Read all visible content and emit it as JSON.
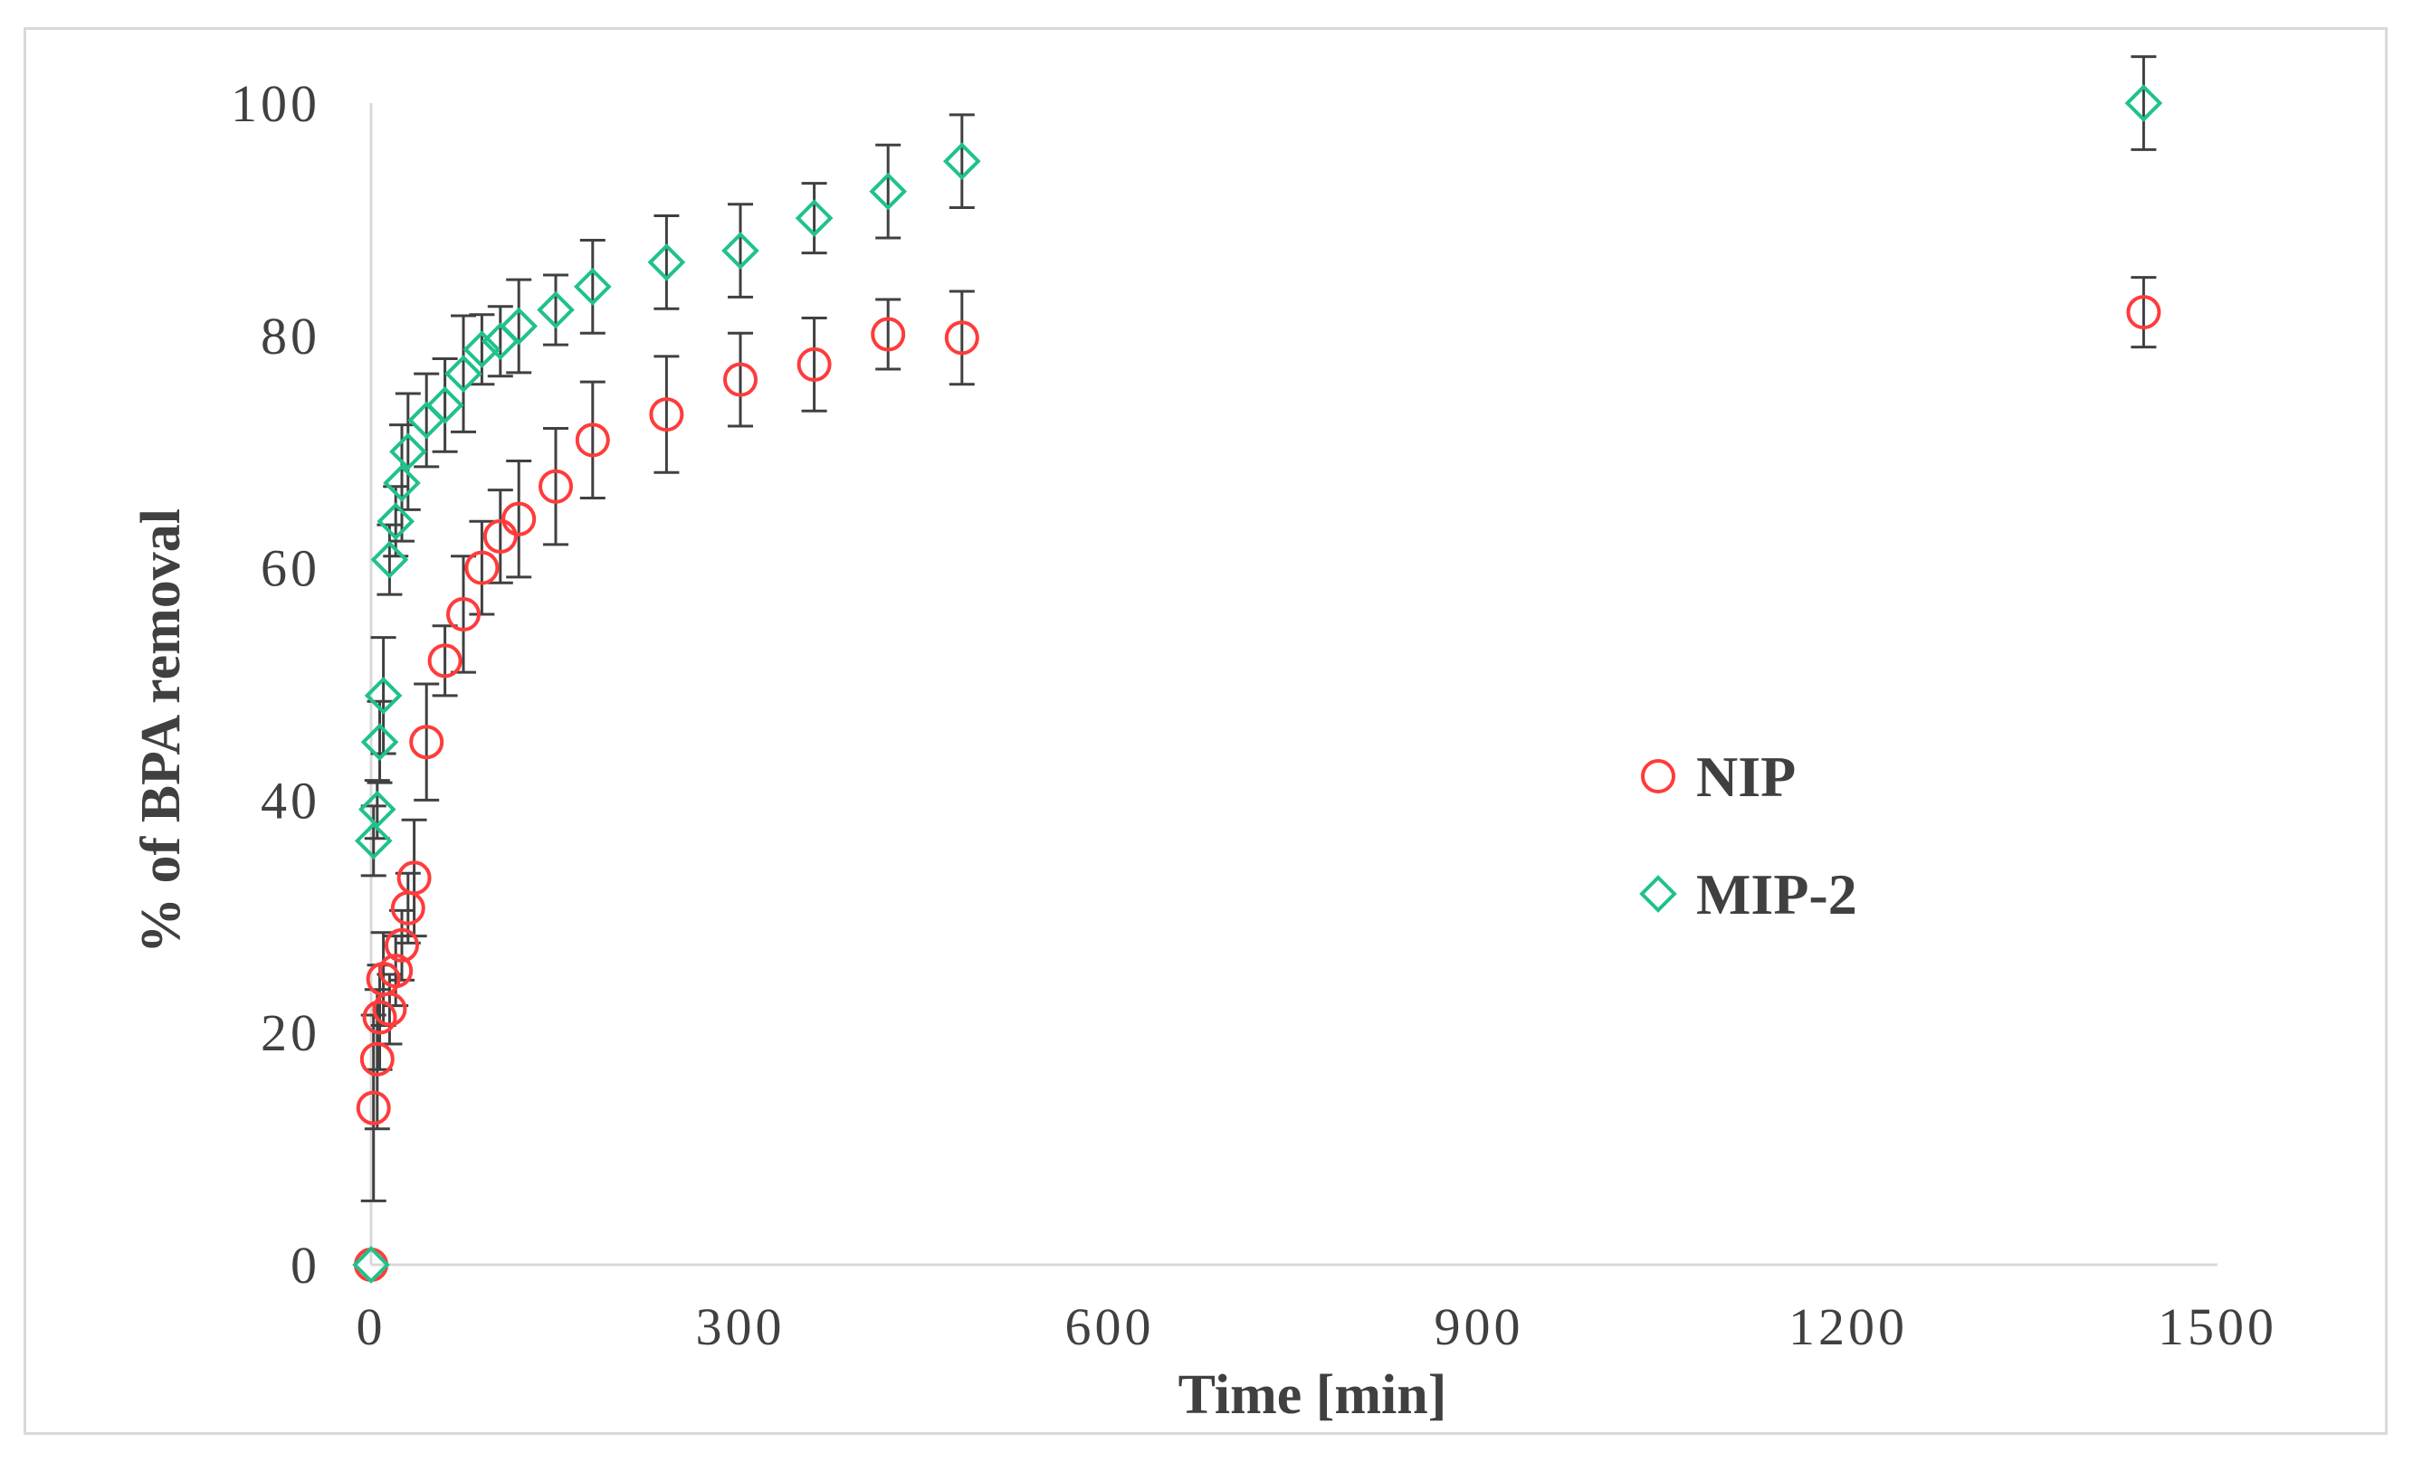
{
  "chart_data": {
    "type": "scatter",
    "title": "",
    "xlabel": "Time [min]",
    "ylabel": "% of BPA removal",
    "xlim": [
      0,
      1500
    ],
    "ylim": [
      0,
      100
    ],
    "xticks": [
      "0",
      "300",
      "600",
      "900",
      "1200",
      "1500"
    ],
    "yticks": [
      "0",
      "20",
      "40",
      "60",
      "80",
      "100"
    ],
    "grid": false,
    "legend_position": "center-right",
    "series": [
      {
        "name": "NIP",
        "marker": "circle",
        "color": "#ff3b3b",
        "points": [
          {
            "x": 0,
            "y": 0,
            "err": 0
          },
          {
            "x": 2,
            "y": 13.5,
            "err": 8
          },
          {
            "x": 5,
            "y": 17.7,
            "err": 6
          },
          {
            "x": 7,
            "y": 21.3,
            "err": 4.5
          },
          {
            "x": 10,
            "y": 24.6,
            "err": 4
          },
          {
            "x": 15,
            "y": 22,
            "err": 3
          },
          {
            "x": 20,
            "y": 25.3,
            "err": 3
          },
          {
            "x": 25,
            "y": 27.5,
            "err": 3
          },
          {
            "x": 30,
            "y": 30.7,
            "err": 3
          },
          {
            "x": 35,
            "y": 33.3,
            "err": 5
          },
          {
            "x": 45,
            "y": 45,
            "err": 5
          },
          {
            "x": 60,
            "y": 52,
            "err": 3
          },
          {
            "x": 75,
            "y": 56,
            "err": 5
          },
          {
            "x": 90,
            "y": 60,
            "err": 4
          },
          {
            "x": 105,
            "y": 62.7,
            "err": 4
          },
          {
            "x": 120,
            "y": 64.2,
            "err": 5
          },
          {
            "x": 150,
            "y": 67,
            "err": 5
          },
          {
            "x": 180,
            "y": 71,
            "err": 5
          },
          {
            "x": 240,
            "y": 73.2,
            "err": 5
          },
          {
            "x": 300,
            "y": 76.2,
            "err": 4
          },
          {
            "x": 360,
            "y": 77.5,
            "err": 4
          },
          {
            "x": 420,
            "y": 80.1,
            "err": 3
          },
          {
            "x": 480,
            "y": 79.8,
            "err": 4
          },
          {
            "x": 1440,
            "y": 82,
            "err": 3
          }
        ]
      },
      {
        "name": "MIP-2",
        "marker": "diamond",
        "color": "#1fc28a",
        "points": [
          {
            "x": 0,
            "y": 0,
            "err": 0
          },
          {
            "x": 2,
            "y": 36.5,
            "err": 3
          },
          {
            "x": 5,
            "y": 39.2,
            "err": 2.5
          },
          {
            "x": 7,
            "y": 45,
            "err": 3.5
          },
          {
            "x": 10,
            "y": 49,
            "err": 5
          },
          {
            "x": 15,
            "y": 60.7,
            "err": 3
          },
          {
            "x": 20,
            "y": 64,
            "err": 3
          },
          {
            "x": 25,
            "y": 67.3,
            "err": 5
          },
          {
            "x": 30,
            "y": 70,
            "err": 5
          },
          {
            "x": 45,
            "y": 72.7,
            "err": 4
          },
          {
            "x": 60,
            "y": 74,
            "err": 4
          },
          {
            "x": 75,
            "y": 76.7,
            "err": 5
          },
          {
            "x": 90,
            "y": 78.8,
            "err": 3
          },
          {
            "x": 105,
            "y": 79.5,
            "err": 3
          },
          {
            "x": 120,
            "y": 80.8,
            "err": 4
          },
          {
            "x": 150,
            "y": 82.2,
            "err": 3
          },
          {
            "x": 180,
            "y": 84.2,
            "err": 4
          },
          {
            "x": 240,
            "y": 86.3,
            "err": 4
          },
          {
            "x": 300,
            "y": 87.3,
            "err": 4
          },
          {
            "x": 360,
            "y": 90.1,
            "err": 3
          },
          {
            "x": 420,
            "y": 92.4,
            "err": 4
          },
          {
            "x": 480,
            "y": 95,
            "err": 4
          },
          {
            "x": 1440,
            "y": 100,
            "err": 4
          }
        ]
      }
    ]
  }
}
